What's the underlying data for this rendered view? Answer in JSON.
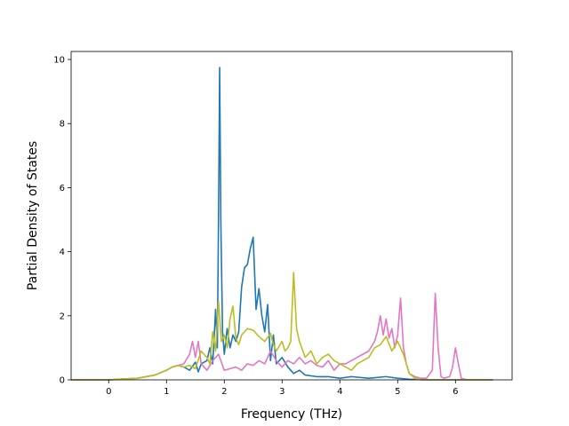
{
  "chart_data": {
    "type": "line",
    "title": "",
    "xlabel": "Frequency (THz)",
    "ylabel": "Partial Density of States",
    "xlim": [
      -0.65,
      6.98
    ],
    "ylim": [
      0,
      10.25
    ],
    "xticks": [
      0,
      1,
      2,
      3,
      4,
      5,
      6
    ],
    "yticks": [
      0,
      2,
      4,
      6,
      8,
      10
    ],
    "grid": false,
    "legend": "none",
    "colors": {
      "blue": "#1f77b4",
      "pink": "#e377c2",
      "olive": "#bcbd22"
    },
    "series": [
      {
        "color": "#1f77b4",
        "x": [
          -0.65,
          0,
          0.5,
          0.8,
          1.0,
          1.1,
          1.2,
          1.3,
          1.4,
          1.5,
          1.55,
          1.6,
          1.7,
          1.75,
          1.8,
          1.85,
          1.88,
          1.9,
          1.92,
          1.94,
          1.97,
          2.0,
          2.05,
          2.1,
          2.15,
          2.2,
          2.25,
          2.3,
          2.35,
          2.4,
          2.45,
          2.5,
          2.55,
          2.6,
          2.65,
          2.7,
          2.75,
          2.8,
          2.85,
          2.9,
          3.0,
          3.1,
          3.2,
          3.3,
          3.4,
          3.6,
          3.8,
          4.0,
          4.2,
          4.5,
          4.8,
          5.0,
          5.2,
          5.5,
          6.0,
          6.65
        ],
        "y": [
          0,
          0,
          0.05,
          0.15,
          0.3,
          0.4,
          0.45,
          0.4,
          0.3,
          0.55,
          0.25,
          0.5,
          0.6,
          1.0,
          0.5,
          2.2,
          1.0,
          5.0,
          9.75,
          5.0,
          1.5,
          0.8,
          1.6,
          1.0,
          1.4,
          1.2,
          1.5,
          2.9,
          3.5,
          3.6,
          4.1,
          4.45,
          2.2,
          2.85,
          2.0,
          1.5,
          2.35,
          0.6,
          1.4,
          0.5,
          0.7,
          0.4,
          0.2,
          0.3,
          0.15,
          0.1,
          0.1,
          0.05,
          0.1,
          0.05,
          0.1,
          0.05,
          0.02,
          0,
          0,
          0
        ]
      },
      {
        "color": "#e377c2",
        "x": [
          -0.65,
          0,
          0.5,
          0.8,
          1.0,
          1.1,
          1.2,
          1.3,
          1.4,
          1.45,
          1.5,
          1.55,
          1.6,
          1.7,
          1.8,
          1.9,
          2.0,
          2.1,
          2.2,
          2.3,
          2.4,
          2.5,
          2.6,
          2.7,
          2.8,
          2.9,
          3.0,
          3.1,
          3.2,
          3.3,
          3.4,
          3.5,
          3.6,
          3.7,
          3.8,
          3.9,
          4.0,
          4.1,
          4.2,
          4.3,
          4.4,
          4.5,
          4.6,
          4.65,
          4.7,
          4.75,
          4.8,
          4.85,
          4.9,
          4.95,
          5.0,
          5.05,
          5.1,
          5.15,
          5.2,
          5.3,
          5.4,
          5.5,
          5.6,
          5.65,
          5.7,
          5.75,
          5.8,
          5.9,
          5.95,
          6.0,
          6.05,
          6.1,
          6.2,
          6.65
        ],
        "y": [
          0,
          0,
          0.05,
          0.15,
          0.3,
          0.4,
          0.45,
          0.5,
          0.8,
          1.2,
          0.7,
          1.2,
          0.5,
          0.3,
          0.6,
          0.8,
          0.3,
          0.35,
          0.4,
          0.3,
          0.5,
          0.45,
          0.6,
          0.5,
          0.9,
          0.6,
          0.4,
          0.6,
          0.5,
          0.7,
          0.5,
          0.6,
          0.45,
          0.4,
          0.6,
          0.3,
          0.5,
          0.5,
          0.6,
          0.7,
          0.8,
          0.9,
          1.2,
          1.5,
          2.0,
          1.4,
          1.9,
          1.3,
          1.6,
          1.0,
          1.4,
          2.55,
          1.0,
          0.5,
          0.2,
          0.1,
          0.05,
          0.05,
          0.3,
          2.7,
          1.0,
          0.1,
          0.05,
          0.1,
          0.4,
          1.0,
          0.5,
          0.05,
          0,
          0
        ]
      },
      {
        "color": "#bcbd22",
        "x": [
          -0.65,
          0,
          0.5,
          0.8,
          1.0,
          1.1,
          1.2,
          1.3,
          1.4,
          1.5,
          1.6,
          1.7,
          1.75,
          1.8,
          1.85,
          1.9,
          1.95,
          2.0,
          2.05,
          2.1,
          2.15,
          2.2,
          2.25,
          2.3,
          2.4,
          2.5,
          2.6,
          2.7,
          2.8,
          2.85,
          2.9,
          3.0,
          3.05,
          3.1,
          3.15,
          3.2,
          3.25,
          3.3,
          3.4,
          3.5,
          3.6,
          3.7,
          3.8,
          3.9,
          4.0,
          4.1,
          4.2,
          4.3,
          4.4,
          4.5,
          4.6,
          4.7,
          4.8,
          4.9,
          5.0,
          5.1,
          5.2,
          5.3,
          5.4,
          6.65
        ],
        "y": [
          0,
          0,
          0.05,
          0.15,
          0.3,
          0.4,
          0.45,
          0.4,
          0.45,
          0.35,
          0.9,
          0.7,
          0.5,
          1.5,
          0.9,
          2.45,
          1.2,
          1.4,
          1.0,
          1.9,
          2.3,
          1.3,
          1.1,
          1.4,
          1.6,
          1.55,
          1.35,
          1.2,
          1.45,
          1.1,
          0.9,
          1.2,
          0.9,
          1.0,
          1.2,
          3.35,
          1.6,
          1.2,
          0.7,
          0.9,
          0.5,
          0.7,
          0.8,
          0.6,
          0.5,
          0.4,
          0.3,
          0.5,
          0.6,
          0.7,
          1.0,
          1.1,
          1.35,
          0.9,
          1.2,
          0.8,
          0.2,
          0.05,
          0,
          0
        ]
      }
    ]
  }
}
